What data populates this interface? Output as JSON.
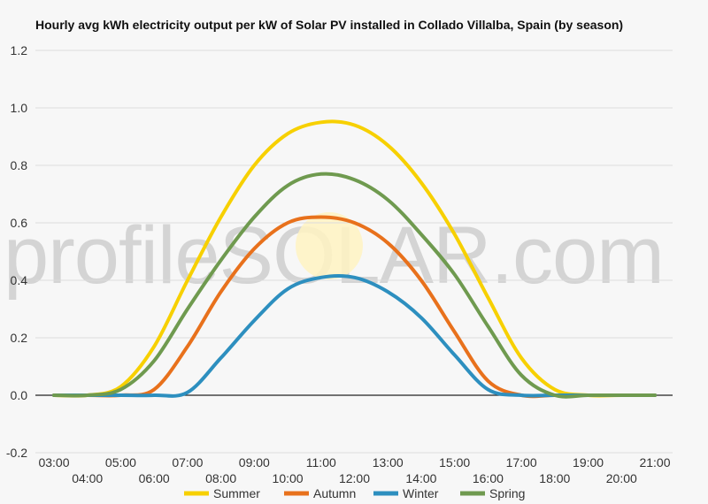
{
  "chart_data": {
    "type": "line",
    "title": "Hourly avg kWh electricity output per kW of Solar PV installed in Collado Villalba, Spain (by season)",
    "xlabel": "",
    "ylabel": "",
    "ylim": [
      -0.2,
      1.2
    ],
    "yticks": [
      "-0.2",
      "0.0",
      "0.2",
      "0.4",
      "0.6",
      "0.8",
      "1.0",
      "1.2"
    ],
    "x": [
      "03:00",
      "04:00",
      "05:00",
      "06:00",
      "07:00",
      "08:00",
      "09:00",
      "10:00",
      "11:00",
      "12:00",
      "13:00",
      "14:00",
      "15:00",
      "16:00",
      "17:00",
      "18:00",
      "19:00",
      "20:00",
      "21:00"
    ],
    "grid": true,
    "legend_position": "bottom",
    "series": [
      {
        "name": "Summer",
        "color": "#f7d000",
        "values": [
          0.0,
          0.0,
          0.03,
          0.17,
          0.4,
          0.62,
          0.8,
          0.91,
          0.95,
          0.94,
          0.87,
          0.74,
          0.56,
          0.34,
          0.13,
          0.02,
          0.0,
          0.0,
          0.0
        ]
      },
      {
        "name": "Autumn",
        "color": "#e8711c",
        "values": [
          0.0,
          0.0,
          0.0,
          0.02,
          0.17,
          0.36,
          0.51,
          0.6,
          0.62,
          0.6,
          0.53,
          0.4,
          0.22,
          0.05,
          0.0,
          0.0,
          0.0,
          0.0,
          0.0
        ]
      },
      {
        "name": "Winter",
        "color": "#2d8fbf",
        "values": [
          0.0,
          0.0,
          0.0,
          0.0,
          0.01,
          0.13,
          0.26,
          0.37,
          0.41,
          0.41,
          0.36,
          0.27,
          0.14,
          0.02,
          0.0,
          0.0,
          0.0,
          0.0,
          0.0
        ]
      },
      {
        "name": "Spring",
        "color": "#6f9a4f",
        "values": [
          0.0,
          0.0,
          0.02,
          0.12,
          0.3,
          0.47,
          0.62,
          0.73,
          0.77,
          0.75,
          0.68,
          0.56,
          0.42,
          0.24,
          0.07,
          0.0,
          0.0,
          0.0,
          0.0
        ]
      }
    ],
    "watermark": "profileSOLAR.com"
  }
}
